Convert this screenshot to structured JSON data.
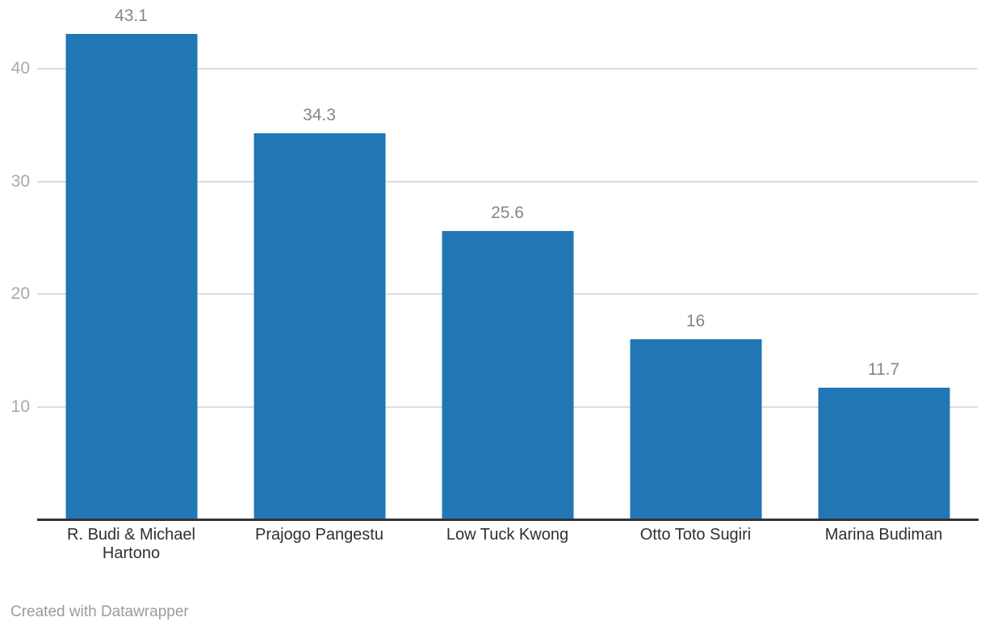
{
  "chart_data": {
    "type": "bar",
    "categories": [
      "R. Budi & Michael Hartono",
      "Prajogo Pangestu",
      "Low Tuck Kwong",
      "Otto Toto Sugiri",
      "Marina Budiman"
    ],
    "values": [
      43.1,
      34.3,
      25.6,
      16,
      11.7
    ],
    "value_labels": [
      "43.1",
      "34.3",
      "25.6",
      "16",
      "11.7"
    ],
    "title": "",
    "xlabel": "",
    "ylabel": "",
    "y_ticks": [
      10,
      20,
      30,
      40
    ],
    "ylim": [
      0,
      43.1
    ],
    "grid": "horizontal-only",
    "legend": "none"
  },
  "colors": {
    "bar": "#2077b4",
    "grid_line": "#dddddd",
    "axis_line": "#333333",
    "y_tick_label": "#a9a9a9",
    "value_label": "#868686",
    "category_label": "#2f2f2f",
    "credit_text": "#9b9b9b",
    "background": "#ffffff"
  },
  "footer": {
    "credit": "Created with Datawrapper"
  }
}
